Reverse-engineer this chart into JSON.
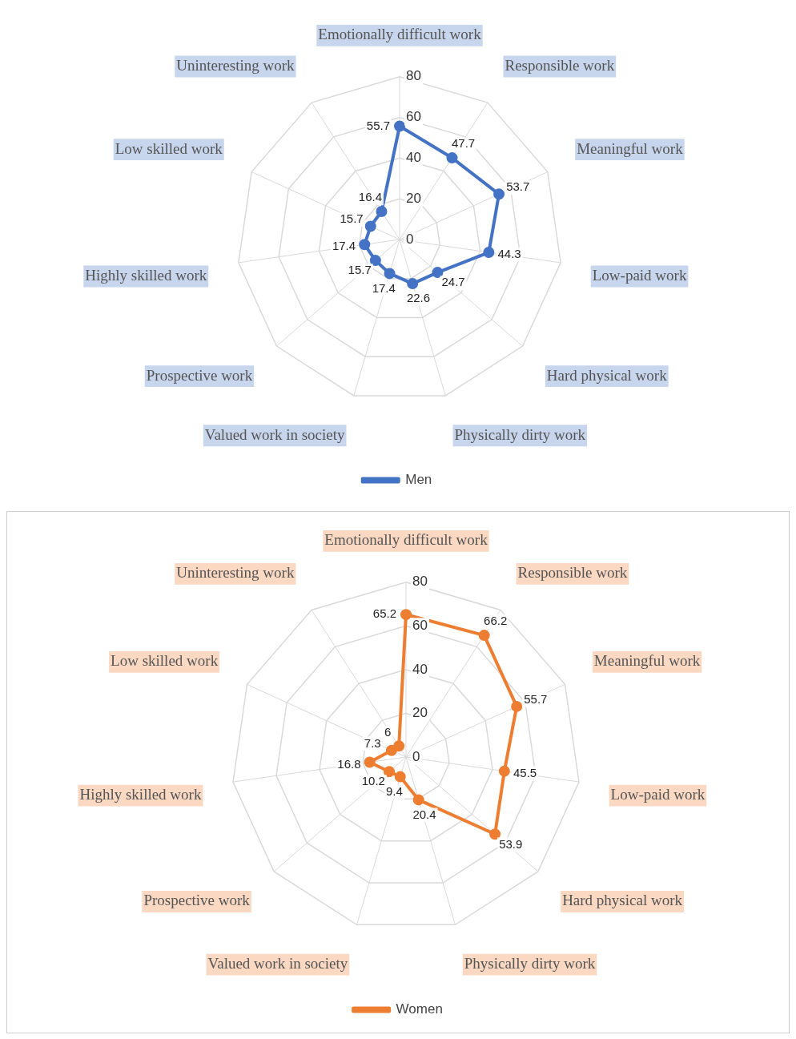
{
  "chart_data": [
    {
      "type": "radar",
      "categories": [
        "Emotionally difficult work",
        "Responsible work",
        "Meaningful work",
        "Low-paid work",
        "Hard physical work",
        "Physically dirty work",
        "Valued work in society",
        "Prospective work",
        "Highly skilled work",
        "Low skilled work",
        "Uninteresting work"
      ],
      "series": [
        {
          "name": "Men",
          "color": "#4472c4",
          "values": [
            55.7,
            47.7,
            53.7,
            44.3,
            24.7,
            22.6,
            17.4,
            15.7,
            17.4,
            15.7,
            16.4
          ]
        }
      ],
      "ylim": [
        0,
        80
      ],
      "yticks": [
        0,
        20,
        40,
        60,
        80
      ],
      "grid": true,
      "legend": "bottom",
      "marker": "circle",
      "data_labels": true
    },
    {
      "type": "radar",
      "categories": [
        "Emotionally difficult work",
        "Responsible work",
        "Meaningful work",
        "Low-paid work",
        "Hard physical work",
        "Physically dirty work",
        "Valued work in society",
        "Prospective work",
        "Highly skilled work",
        "Low skilled work",
        "Uninteresting work"
      ],
      "series": [
        {
          "name": "Women",
          "color": "#ed7d31",
          "values": [
            65.2,
            66.2,
            55.7,
            45.5,
            53.9,
            20.4,
            9.4,
            10.2,
            16.8,
            7.3,
            6
          ]
        }
      ],
      "ylim": [
        0,
        80
      ],
      "yticks": [
        0,
        20,
        40,
        60,
        80
      ],
      "grid": true,
      "legend": "bottom",
      "marker": "circle",
      "data_labels": true
    }
  ]
}
